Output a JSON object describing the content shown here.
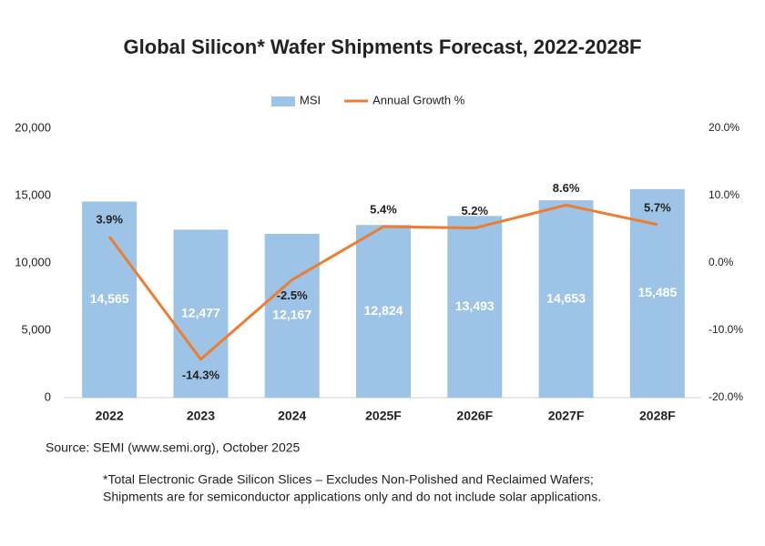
{
  "chart_data": {
    "type": "bar-line",
    "title": "Global Silicon* Wafer Shipments Forecast, 2022-2028F",
    "categories": [
      "2022",
      "2023",
      "2024",
      "2025F",
      "2026F",
      "2027F",
      "2028F"
    ],
    "series": [
      {
        "name": "MSI",
        "type": "bar",
        "color": "#9dc3e6",
        "values": [
          14565,
          12477,
          12167,
          12824,
          13493,
          14653,
          15485
        ],
        "value_labels": [
          "14,565",
          "12,477",
          "12,167",
          "12,824",
          "13,493",
          "14,653",
          "15,485"
        ]
      },
      {
        "name": "Annual Growth %",
        "type": "line",
        "axis": "y2",
        "color": "#ed7d31",
        "values": [
          3.9,
          -14.3,
          -2.5,
          5.4,
          5.2,
          8.6,
          5.7
        ],
        "value_labels": [
          "3.9%",
          "-14.3%",
          "-2.5%",
          "5.4%",
          "5.2%",
          "8.6%",
          "5.7%"
        ]
      }
    ],
    "ylim": [
      0,
      20000
    ],
    "yticks": [
      0,
      {
        "value": 5000,
        "label": "5,000"
      },
      {
        "value": 10000,
        "label": "10,000"
      },
      {
        "value": 15000,
        "label": "15,000"
      },
      {
        "value": 20000,
        "label": "20,000"
      }
    ],
    "y2lim": [
      -20,
      20
    ],
    "y2ticks": [
      {
        "value": -20,
        "label": "-20.0%"
      },
      {
        "value": -10,
        "label": "-10.0%"
      },
      {
        "value": 0,
        "label": "0.0%"
      },
      {
        "value": 10,
        "label": "10.0%"
      },
      {
        "value": 20,
        "label": "20.0%"
      }
    ],
    "grid": false,
    "legend": "top",
    "source": "Source: SEMI (www.semi.org), October 2025",
    "footnote": [
      "*Total Electronic Grade Silicon Slices – Excludes Non-Polished and Reclaimed Wafers;",
      "Shipments are for semiconductor applications only and do not include solar applications."
    ]
  }
}
